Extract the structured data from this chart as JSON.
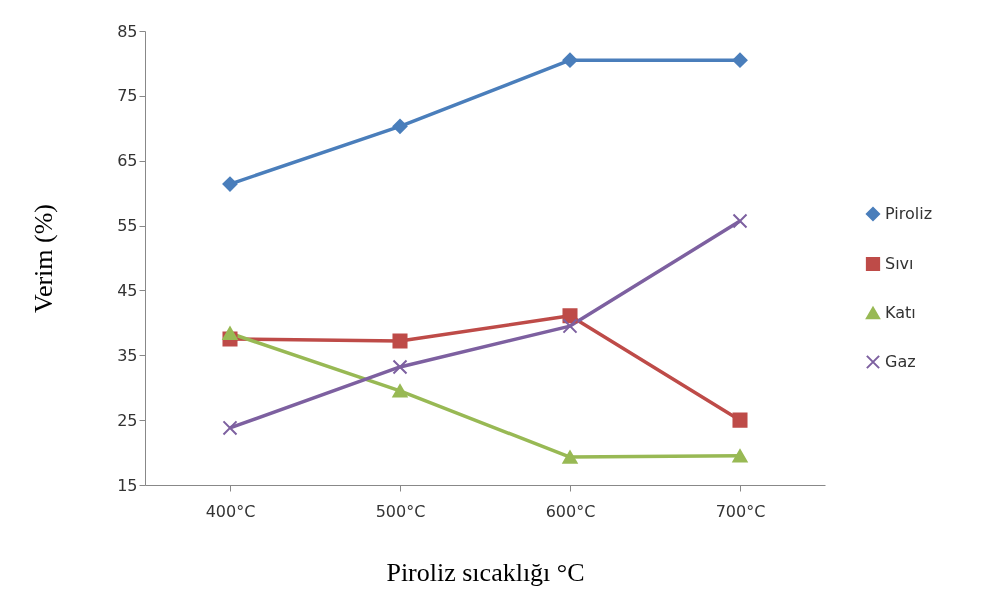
{
  "chart_data": {
    "type": "line",
    "xlabel": "Piroliz sıcaklığı °C",
    "ylabel": "Verim (%)",
    "categories": [
      "400°C",
      "500°C",
      "600°C",
      "700°C"
    ],
    "ylim": [
      15,
      85
    ],
    "yticks": [
      15,
      25,
      35,
      45,
      55,
      65,
      75,
      85
    ],
    "grid": false,
    "legend": "right",
    "line_style": "solid",
    "series": [
      {
        "name": "Piroliz",
        "color": "#4a7ebb",
        "marker": "diamond",
        "values": [
          61.4,
          70.3,
          80.5,
          80.5
        ]
      },
      {
        "name": "Sıvı",
        "color": "#be4b48",
        "marker": "square",
        "values": [
          37.5,
          37.2,
          41.1,
          25.0
        ]
      },
      {
        "name": "Katı",
        "color": "#98b954",
        "marker": "triangle",
        "values": [
          38.4,
          29.5,
          19.3,
          19.5
        ]
      },
      {
        "name": "Gaz",
        "color": "#7d60a0",
        "marker": "cross",
        "values": [
          23.8,
          33.2,
          39.5,
          55.7
        ]
      }
    ]
  }
}
